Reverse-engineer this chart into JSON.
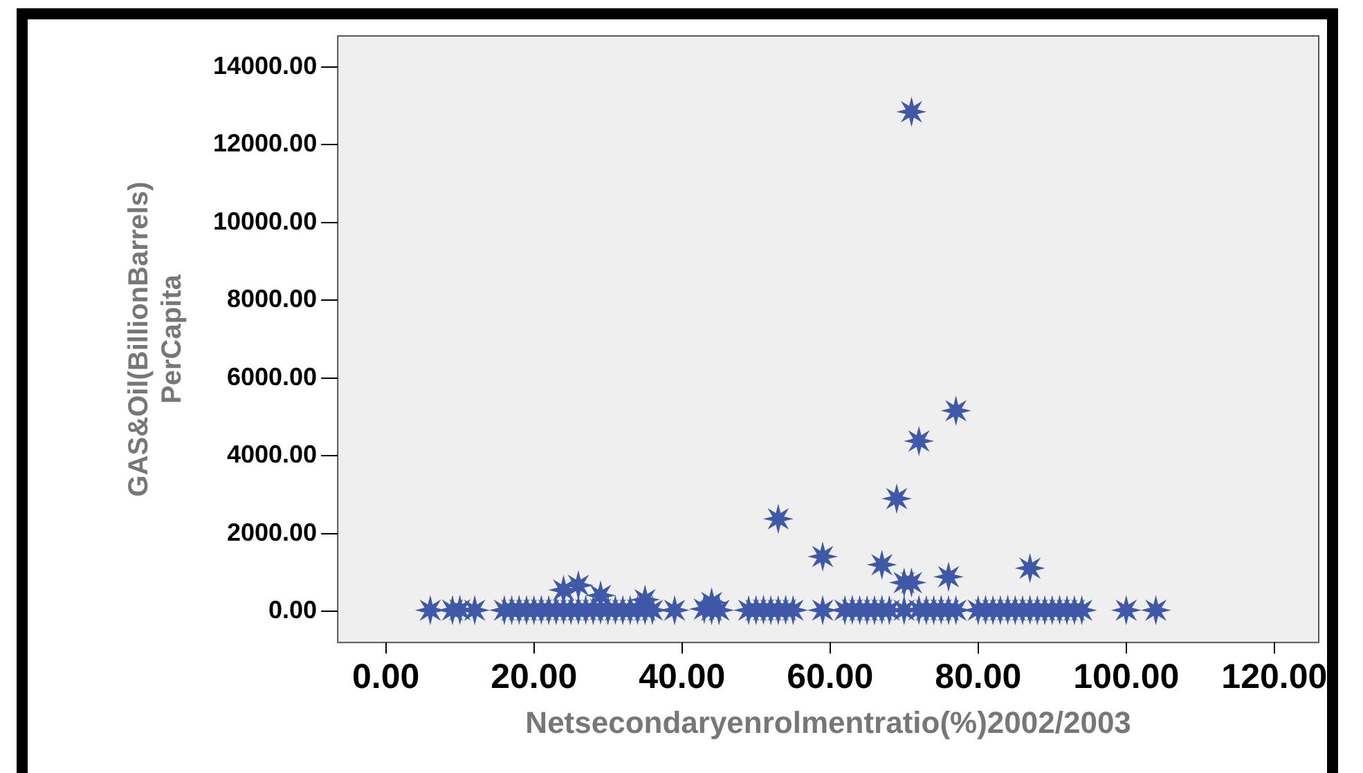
{
  "chart_data": {
    "type": "scatter",
    "xlabel": "Netsecondaryenrolmentratio(%)2002/2003",
    "ylabel": "GAS&Oil(BillionBarrels)\nPerCapita",
    "marker": "star",
    "grid": false,
    "legend": false,
    "xlim": [
      -6.5,
      126
    ],
    "ylim": [
      -800,
      14800
    ],
    "xticks": [
      {
        "value": 0,
        "label": "0.00"
      },
      {
        "value": 20,
        "label": "20.00"
      },
      {
        "value": 40,
        "label": "40.00"
      },
      {
        "value": 60,
        "label": "60.00"
      },
      {
        "value": 80,
        "label": "80.00"
      },
      {
        "value": 100,
        "label": "100.00"
      },
      {
        "value": 120,
        "label": "120.00"
      }
    ],
    "yticks": [
      {
        "value": 0,
        "label": "0.00"
      },
      {
        "value": 2000,
        "label": "2000.00"
      },
      {
        "value": 4000,
        "label": "4000.00"
      },
      {
        "value": 6000,
        "label": "6000.00"
      },
      {
        "value": 8000,
        "label": "8000.00"
      },
      {
        "value": 10000,
        "label": "10000.00"
      },
      {
        "value": 12000,
        "label": "12000.00"
      },
      {
        "value": 14000,
        "label": "14000.00"
      }
    ],
    "series": [
      {
        "color": "#3f58a8",
        "x": [
          6,
          9,
          10,
          12,
          16,
          17,
          18,
          19,
          20,
          21,
          22,
          23,
          24,
          25,
          26,
          27,
          28,
          29,
          30,
          31,
          32,
          33,
          34,
          35,
          36,
          39,
          43,
          44,
          45,
          49,
          50,
          51,
          52,
          53,
          54,
          55,
          59,
          62,
          63,
          64,
          65,
          66,
          67,
          68,
          70,
          72,
          73,
          74,
          75,
          76,
          77,
          80,
          81,
          82,
          83,
          84,
          85,
          86,
          87,
          88,
          89,
          90,
          91,
          92,
          93,
          94,
          100,
          104,
          24,
          26,
          29,
          35,
          44,
          53,
          59,
          67,
          69,
          70,
          71,
          72,
          76,
          77,
          87,
          71
        ],
        "values": [
          30,
          30,
          40,
          30,
          30,
          30,
          40,
          30,
          30,
          40,
          30,
          30,
          40,
          30,
          30,
          40,
          30,
          50,
          30,
          40,
          30,
          30,
          40,
          30,
          30,
          30,
          60,
          30,
          30,
          30,
          30,
          40,
          30,
          30,
          40,
          30,
          30,
          30,
          40,
          30,
          30,
          30,
          40,
          30,
          30,
          40,
          30,
          30,
          40,
          30,
          30,
          30,
          40,
          30,
          30,
          40,
          30,
          30,
          40,
          30,
          30,
          30,
          40,
          30,
          30,
          30,
          30,
          30,
          550,
          670,
          410,
          300,
          230,
          2380,
          1410,
          1200,
          2900,
          740,
          740,
          4380,
          890,
          5160,
          1110,
          12850
        ]
      }
    ]
  }
}
